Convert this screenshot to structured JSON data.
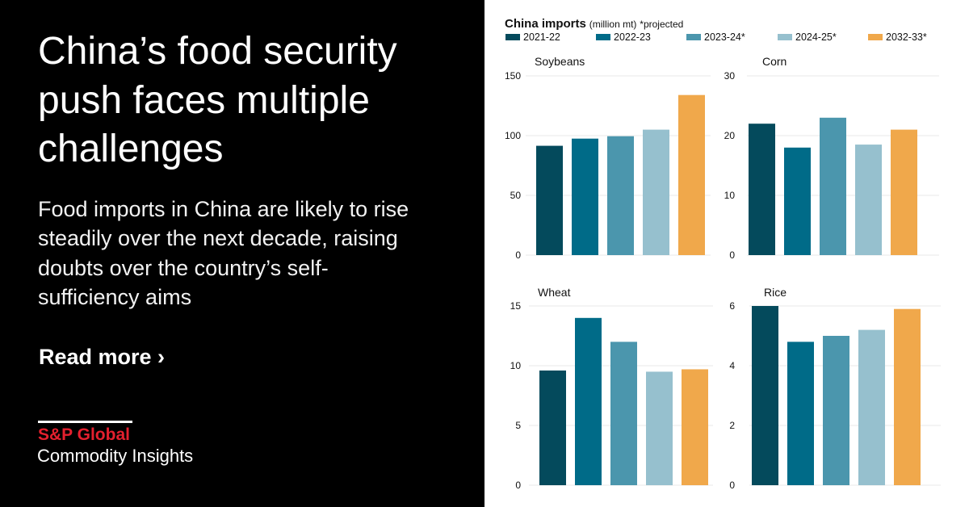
{
  "headline": "China’s food security push faces multiple challenges",
  "subheadline": "Food imports in China are likely to rise steadily over the next decade, raising doubts over the country’s self-sufficiency aims",
  "read_more": "Read more ›",
  "logo": {
    "brand": "S&P Global",
    "division": "Commodity Insights",
    "brand_color": "#e4202e"
  },
  "chart_header": {
    "title": "China imports",
    "unit": "(million mt)",
    "note": "*projected"
  },
  "chart_data": [
    {
      "type": "bar",
      "title": "Soybeans",
      "categories": [
        "2021-22",
        "2022-23",
        "2023-24*",
        "2024-25*",
        "2032-33*"
      ],
      "values": [
        91.5,
        97.5,
        99.5,
        105,
        134
      ],
      "ylim": [
        0,
        150
      ],
      "yticks": [
        0,
        50,
        100,
        150
      ],
      "grid": true
    },
    {
      "type": "bar",
      "title": "Corn",
      "categories": [
        "2021-22",
        "2022-23",
        "2023-24*",
        "2024-25*",
        "2032-33*"
      ],
      "values": [
        22,
        18,
        23,
        18.5,
        21
      ],
      "ylim": [
        0,
        30
      ],
      "yticks": [
        0,
        10,
        20,
        30
      ],
      "grid": true
    },
    {
      "type": "bar",
      "title": "Wheat",
      "categories": [
        "2021-22",
        "2022-23",
        "2023-24*",
        "2024-25*",
        "2032-33*"
      ],
      "values": [
        9.6,
        14,
        12,
        9.5,
        9.7
      ],
      "ylim": [
        0,
        15
      ],
      "yticks": [
        0,
        5,
        10,
        15
      ],
      "grid": true
    },
    {
      "type": "bar",
      "title": "Rice",
      "categories": [
        "2021-22",
        "2022-23",
        "2023-24*",
        "2024-25*",
        "2032-33*"
      ],
      "values": [
        6,
        4.8,
        5,
        5.2,
        5.9
      ],
      "ylim": [
        0,
        6
      ],
      "yticks": [
        0,
        2,
        4,
        6
      ],
      "grid": true
    }
  ],
  "legend": [
    {
      "label": "2021-22",
      "color": "#044a5c"
    },
    {
      "label": "2022-23",
      "color": "#006b88"
    },
    {
      "label": "2023-24*",
      "color": "#4b96ad"
    },
    {
      "label": "2024-25*",
      "color": "#96c0ce"
    },
    {
      "label": "2032-33*",
      "color": "#f0a84b"
    }
  ]
}
